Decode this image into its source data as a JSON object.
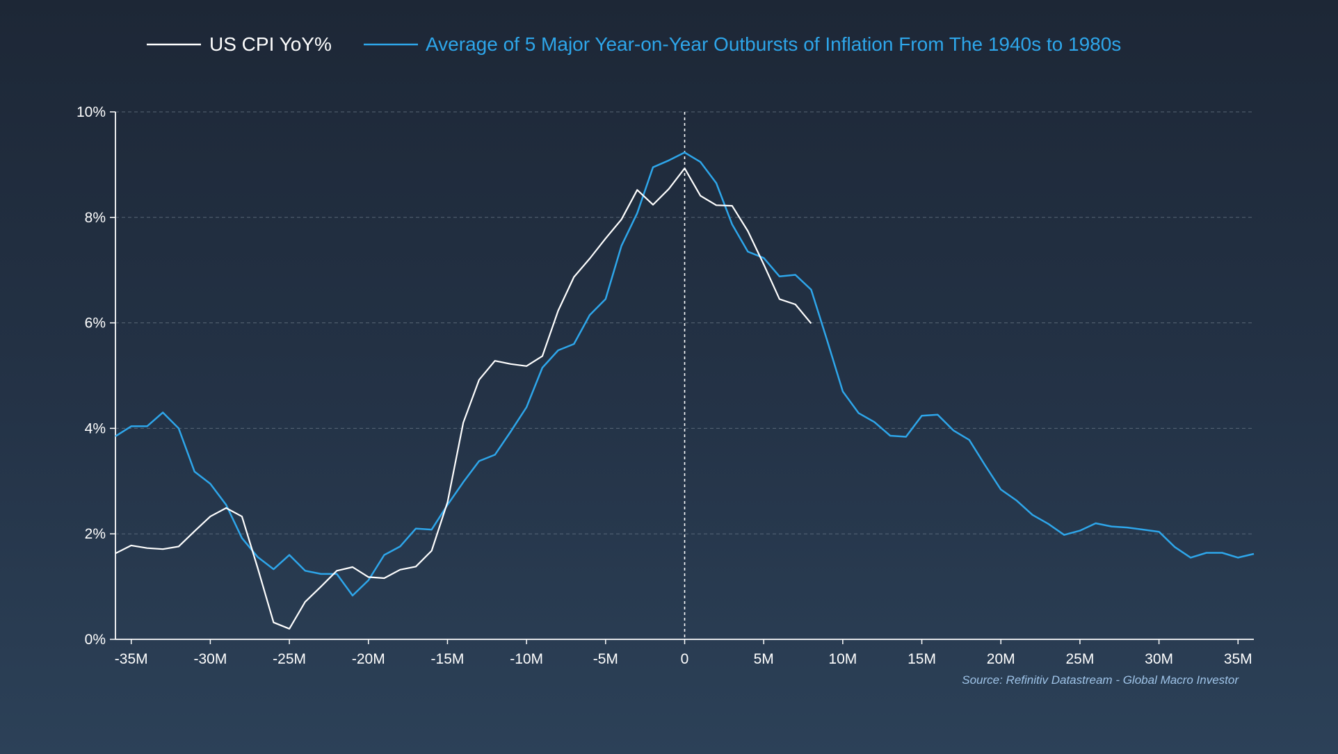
{
  "chart_data": {
    "type": "line",
    "title": "",
    "xlabel": "",
    "ylabel": "",
    "xlim": [
      -36,
      36
    ],
    "ylim": [
      0,
      10
    ],
    "x_ticks": [
      -35,
      -30,
      -25,
      -20,
      -15,
      -10,
      -5,
      0,
      5,
      10,
      15,
      20,
      25,
      30,
      35
    ],
    "x_tick_labels": [
      "-35M",
      "-30M",
      "-25M",
      "-20M",
      "-15M",
      "-10M",
      "-5M",
      "0",
      "5M",
      "10M",
      "15M",
      "20M",
      "25M",
      "30M",
      "35M"
    ],
    "y_ticks": [
      0,
      2,
      4,
      6,
      8,
      10
    ],
    "y_tick_labels": [
      "0%",
      "2%",
      "4%",
      "6%",
      "8%",
      "10%"
    ],
    "grid": "horizontal-dashed",
    "reference_line": {
      "x": 0,
      "style": "dashed"
    },
    "legend": "top",
    "source": "Source: Refinitiv Datastream - Global Macro Investor",
    "series": [
      {
        "name": "US CPI YoY%",
        "color": "#ffffff",
        "x": [
          -36,
          -35,
          -34,
          -33,
          -32,
          -31,
          -30,
          -29,
          -28,
          -27,
          -26,
          -25,
          -24,
          -23,
          -22,
          -21,
          -20,
          -19,
          -18,
          -17,
          -16,
          -15,
          -14,
          -13,
          -12,
          -11,
          -10,
          -9,
          -8,
          -7,
          -6,
          -5,
          -4,
          -3,
          -2,
          -1,
          0,
          1,
          2,
          3,
          4,
          5,
          6,
          7,
          8
        ],
        "values": [
          1.63,
          1.78,
          1.73,
          1.71,
          1.76,
          2.05,
          2.33,
          2.49,
          2.33,
          1.35,
          0.32,
          0.2,
          0.71,
          1.0,
          1.3,
          1.37,
          1.18,
          1.16,
          1.32,
          1.38,
          1.68,
          2.6,
          4.11,
          4.92,
          5.28,
          5.22,
          5.18,
          5.37,
          6.23,
          6.87,
          7.22,
          7.6,
          7.96,
          8.52,
          8.24,
          8.54,
          8.93,
          8.41,
          8.23,
          8.22,
          7.74,
          7.11,
          6.45,
          6.35,
          5.99
        ]
      },
      {
        "name": "Average of 5 Major Year-on-Year Outbursts of Inflation From The 1940s to 1980s",
        "color": "#2ea6ea",
        "x": [
          -36,
          -35,
          -34,
          -33,
          -32,
          -31,
          -30,
          -29,
          -28,
          -27,
          -26,
          -25,
          -24,
          -23,
          -22,
          -21,
          -20,
          -19,
          -18,
          -17,
          -16,
          -15,
          -14,
          -13,
          -12,
          -11,
          -10,
          -9,
          -8,
          -7,
          -6,
          -5,
          -4,
          -3,
          -2,
          -1,
          0,
          1,
          2,
          3,
          4,
          5,
          6,
          7,
          8,
          9,
          10,
          11,
          12,
          13,
          14,
          15,
          16,
          17,
          18,
          19,
          20,
          21,
          22,
          23,
          24,
          25,
          26,
          27,
          28,
          29,
          30,
          31,
          32,
          33,
          34,
          35,
          36
        ],
        "values": [
          3.85,
          4.04,
          4.04,
          4.3,
          4.0,
          3.18,
          2.95,
          2.55,
          1.92,
          1.56,
          1.33,
          1.6,
          1.3,
          1.24,
          1.24,
          0.83,
          1.12,
          1.6,
          1.76,
          2.1,
          2.08,
          2.55,
          2.98,
          3.38,
          3.5,
          3.94,
          4.4,
          5.15,
          5.48,
          5.6,
          6.15,
          6.45,
          7.46,
          8.08,
          8.95,
          9.08,
          9.23,
          9.05,
          8.65,
          7.87,
          7.35,
          7.23,
          6.88,
          6.91,
          6.63,
          5.68,
          4.7,
          4.29,
          4.12,
          3.86,
          3.84,
          4.24,
          4.26,
          3.96,
          3.78,
          3.3,
          2.84,
          2.63,
          2.36,
          2.19,
          1.98,
          2.06,
          2.2,
          2.14,
          2.12,
          2.08,
          2.04,
          1.75,
          1.55,
          1.64,
          1.64,
          1.55,
          1.62
        ]
      }
    ]
  }
}
